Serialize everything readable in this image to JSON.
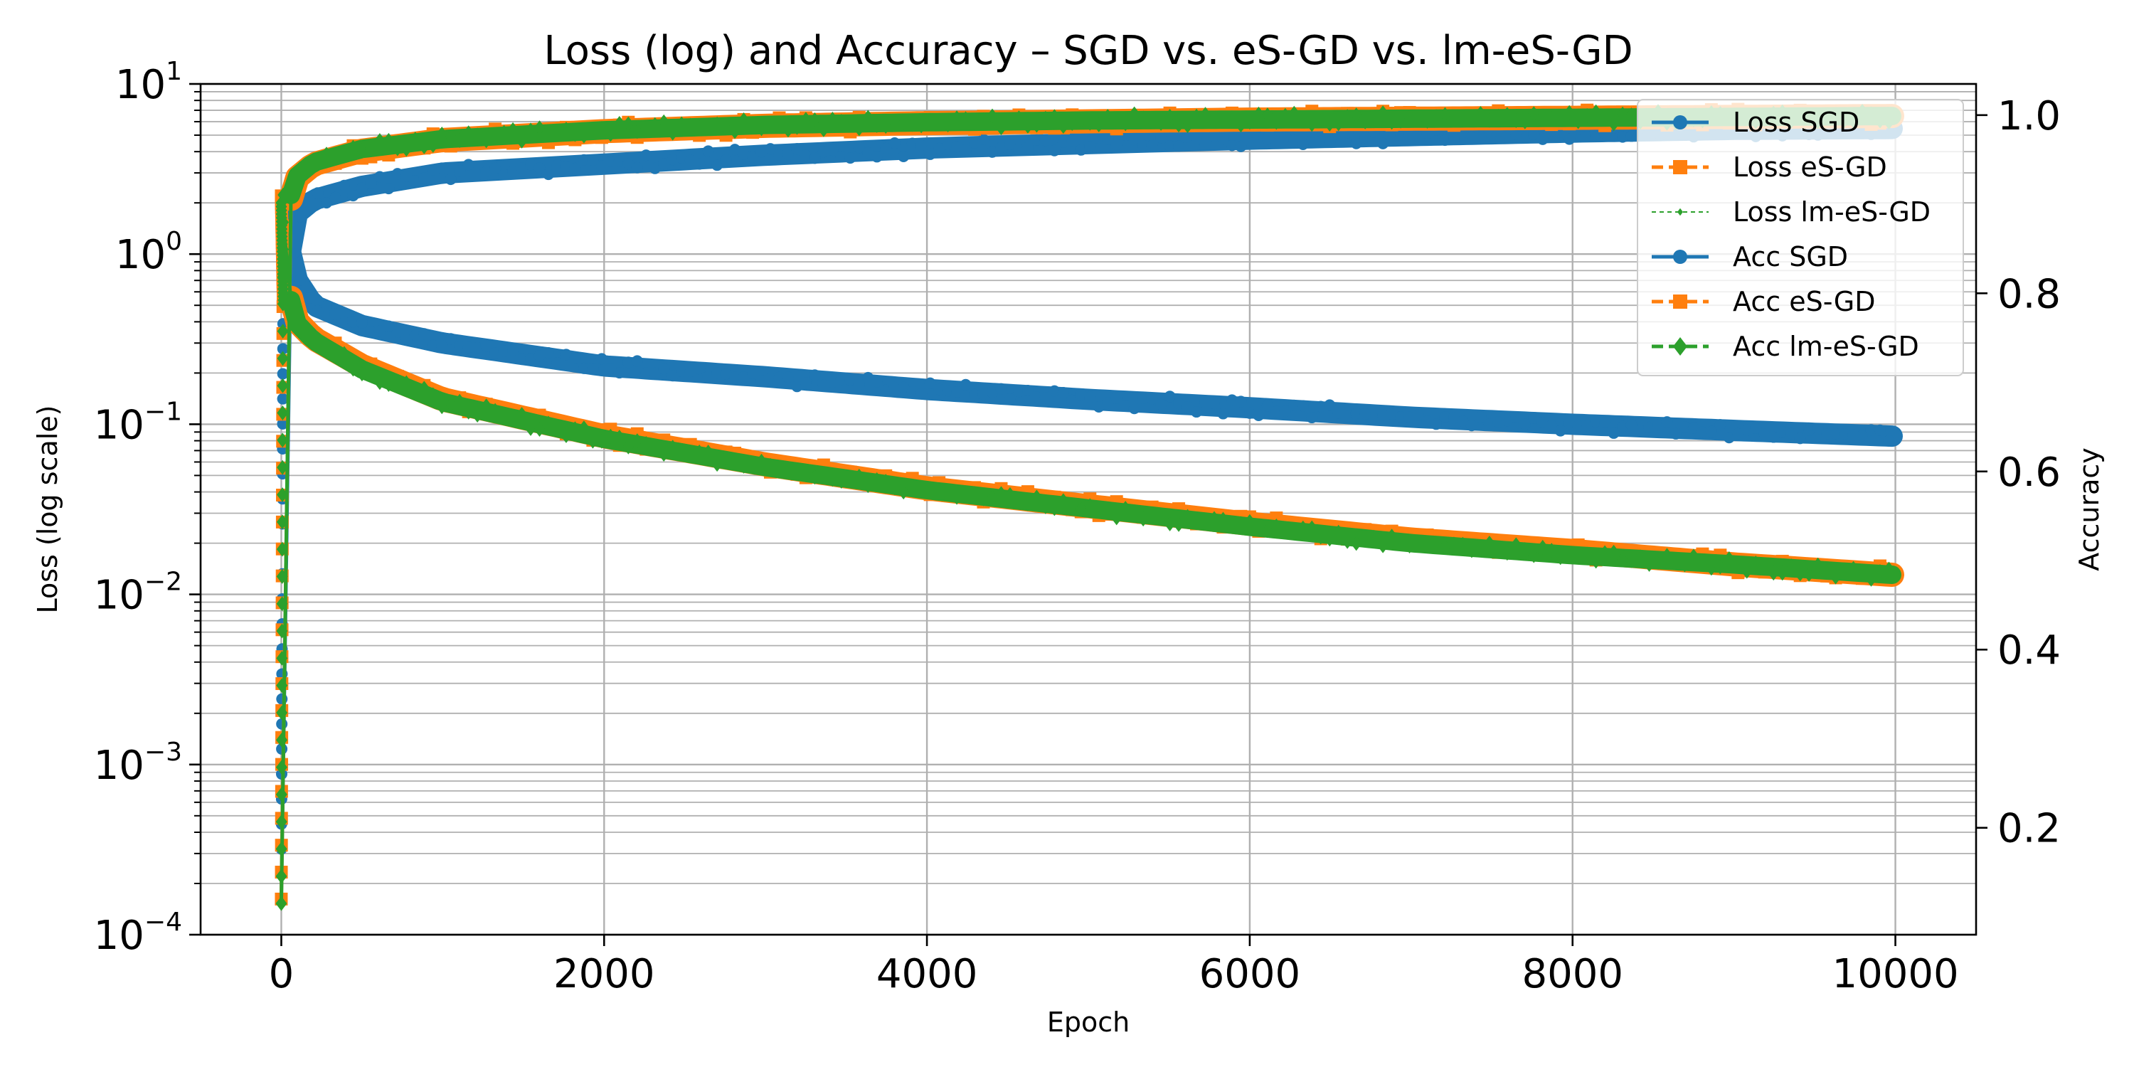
{
  "chart_data": {
    "type": "line",
    "title": "Loss (log) and Accuracy – SGD vs. eS-GD vs. lm-eS-GD",
    "xlabel": "Epoch",
    "ylabel_left": "Loss (log scale)",
    "ylabel_right": "Accuracy",
    "x_ticks": [
      0,
      2000,
      4000,
      6000,
      8000,
      10000
    ],
    "x_tick_labels": [
      "0",
      "2000",
      "4000",
      "6000",
      "8000",
      "10000"
    ],
    "xlim": [
      -500,
      10500
    ],
    "y_left_scale": "log",
    "y_left_lim": [
      0.0001,
      10
    ],
    "y_left_ticks": [
      {
        "base": "10",
        "exp": "1",
        "value": 10
      },
      {
        "base": "10",
        "exp": "0",
        "value": 1
      },
      {
        "base": "10",
        "exp": "−1",
        "value": 0.1
      },
      {
        "base": "10",
        "exp": "−2",
        "value": 0.01
      },
      {
        "base": "10",
        "exp": "−3",
        "value": 0.001
      },
      {
        "base": "10",
        "exp": "−4",
        "value": 0.0001
      }
    ],
    "y_right_lim": [
      0.08,
      1.035
    ],
    "y_right_ticks": [
      0.2,
      0.4,
      0.6,
      0.8,
      1.0
    ],
    "y_right_tick_labels": [
      "0.2",
      "0.4",
      "0.6",
      "0.8",
      "1.0"
    ],
    "grid": true,
    "legend_position": "top-right",
    "legend": [
      {
        "label": "Loss SGD",
        "color": "#1f77b4",
        "marker": "circle",
        "dash": "solid",
        "thin": false
      },
      {
        "label": "Loss eS-GD",
        "color": "#ff7f0e",
        "marker": "square",
        "dash": "dashed",
        "thin": false
      },
      {
        "label": "Loss lm-eS-GD",
        "color": "#2ca02c",
        "marker": "diamond",
        "dash": "dashed",
        "thin": true
      },
      {
        "label": "Acc SGD",
        "color": "#1f77b4",
        "marker": "circle",
        "dash": "solid",
        "thin": false
      },
      {
        "label": "Acc eS-GD",
        "color": "#ff7f0e",
        "marker": "square",
        "dash": "dashed",
        "thin": false
      },
      {
        "label": "Acc lm-eS-GD",
        "color": "#2ca02c",
        "marker": "diamond",
        "dash": "dashed",
        "thin": false
      }
    ],
    "series": [
      {
        "name": "Loss SGD",
        "axis": "left",
        "color": "#1f77b4",
        "marker": "circle",
        "x": [
          0,
          50,
          100,
          200,
          500,
          1000,
          2000,
          3000,
          4000,
          5000,
          6000,
          7000,
          8000,
          9000,
          10000
        ],
        "y": [
          2.2,
          1.1,
          0.7,
          0.5,
          0.38,
          0.3,
          0.22,
          0.19,
          0.16,
          0.14,
          0.125,
          0.11,
          0.1,
          0.092,
          0.085
        ]
      },
      {
        "name": "Loss eS-GD",
        "axis": "left",
        "color": "#ff7f0e",
        "marker": "square",
        "x": [
          0,
          50,
          100,
          200,
          500,
          1000,
          2000,
          3000,
          4000,
          5000,
          6000,
          7000,
          8000,
          9000,
          10000
        ],
        "y": [
          2.2,
          0.6,
          0.4,
          0.32,
          0.22,
          0.14,
          0.085,
          0.058,
          0.042,
          0.033,
          0.026,
          0.021,
          0.018,
          0.015,
          0.013
        ]
      },
      {
        "name": "Loss lm-eS-GD",
        "axis": "left",
        "color": "#2ca02c",
        "marker": "diamond",
        "x": [
          0,
          50,
          100,
          200,
          500,
          1000,
          2000,
          3000,
          4000,
          5000,
          6000,
          7000,
          8000,
          9000,
          10000
        ],
        "y": [
          2.0,
          0.58,
          0.39,
          0.31,
          0.21,
          0.135,
          0.082,
          0.056,
          0.041,
          0.032,
          0.025,
          0.02,
          0.017,
          0.015,
          0.013
        ]
      },
      {
        "name": "Acc SGD",
        "axis": "right",
        "color": "#1f77b4",
        "marker": "circle",
        "x": [
          0,
          50,
          100,
          200,
          500,
          1000,
          2000,
          3000,
          4000,
          5000,
          6000,
          7000,
          8000,
          9000,
          10000
        ],
        "y": [
          0.12,
          0.84,
          0.89,
          0.905,
          0.92,
          0.935,
          0.945,
          0.955,
          0.963,
          0.968,
          0.973,
          0.977,
          0.981,
          0.984,
          0.985
        ]
      },
      {
        "name": "Acc eS-GD",
        "axis": "right",
        "color": "#ff7f0e",
        "marker": "square",
        "x": [
          0,
          50,
          100,
          200,
          500,
          1000,
          2000,
          3000,
          4000,
          5000,
          6000,
          7000,
          8000,
          9000,
          10000
        ],
        "y": [
          0.12,
          0.9,
          0.93,
          0.945,
          0.96,
          0.972,
          0.982,
          0.988,
          0.991,
          0.993,
          0.995,
          0.996,
          0.997,
          0.998,
          0.999
        ]
      },
      {
        "name": "Acc lm-eS-GD",
        "axis": "right",
        "color": "#2ca02c",
        "marker": "diamond",
        "x": [
          0,
          50,
          100,
          200,
          500,
          1000,
          2000,
          3000,
          4000,
          5000,
          6000,
          7000,
          8000,
          9000,
          10000
        ],
        "y": [
          0.115,
          0.905,
          0.932,
          0.947,
          0.962,
          0.973,
          0.983,
          0.989,
          0.992,
          0.994,
          0.995,
          0.996,
          0.997,
          0.998,
          0.999
        ]
      }
    ]
  }
}
